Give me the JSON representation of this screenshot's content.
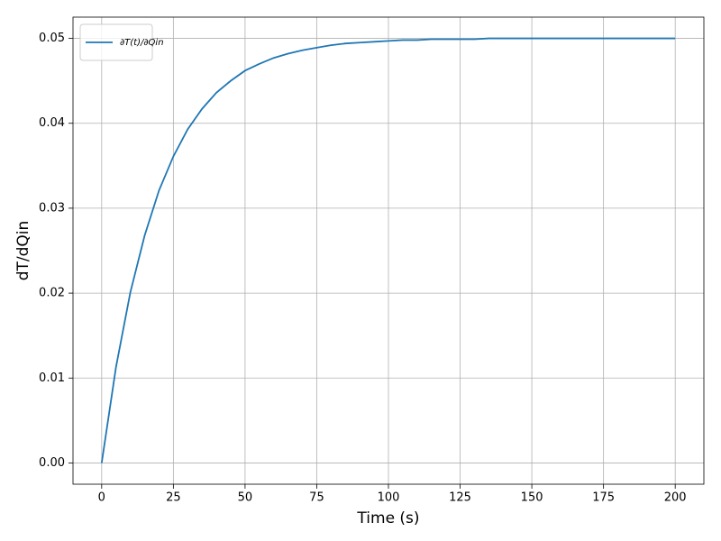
{
  "chart_data": {
    "type": "line",
    "x": [
      0,
      5,
      10,
      15,
      20,
      25,
      30,
      35,
      40,
      45,
      50,
      55,
      60,
      65,
      70,
      75,
      80,
      85,
      90,
      95,
      100,
      105,
      110,
      115,
      120,
      125,
      130,
      135,
      140,
      145,
      150,
      155,
      160,
      165,
      170,
      175,
      180,
      185,
      190,
      195,
      200
    ],
    "series": [
      {
        "name": "∂T(t)/∂Qin",
        "color": "#1f77b4",
        "values": [
          0,
          0.0113,
          0.0201,
          0.0268,
          0.0321,
          0.0361,
          0.0393,
          0.0417,
          0.0436,
          0.045,
          0.0462,
          0.047,
          0.0477,
          0.0482,
          0.0486,
          0.0489,
          0.0492,
          0.0494,
          0.0495,
          0.0496,
          0.0497,
          0.0498,
          0.0498,
          0.0499,
          0.0499,
          0.0499,
          0.0499,
          0.05,
          0.05,
          0.05,
          0.05,
          0.05,
          0.05,
          0.05,
          0.05,
          0.05,
          0.05,
          0.05,
          0.05,
          0.05,
          0.05
        ]
      }
    ],
    "xlabel": "Time (s)",
    "ylabel": "dT/dQin",
    "xlim": [
      -10,
      210
    ],
    "ylim": [
      -0.0025,
      0.0525
    ],
    "xticks": [
      0,
      25,
      50,
      75,
      100,
      125,
      150,
      175,
      200
    ],
    "yticks": [
      {
        "value": 0,
        "label": "0.00"
      },
      0.01,
      0.02,
      0.03,
      0.04,
      0.05
    ],
    "grid": true,
    "legend": "upper left"
  }
}
